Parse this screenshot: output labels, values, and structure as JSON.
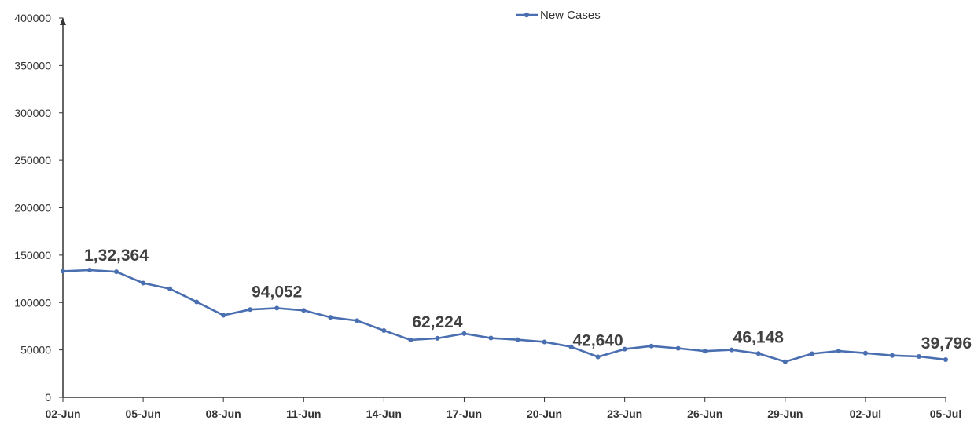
{
  "colors": {
    "series": "#4a6fb0",
    "axis": "#333333",
    "label": "#404040"
  },
  "chart_data": {
    "type": "line",
    "title": "",
    "xlabel": "",
    "ylabel": "",
    "ylim": [
      0,
      400000
    ],
    "y_ticks": [
      "0",
      "50000",
      "100000",
      "150000",
      "200000",
      "250000",
      "300000",
      "350000",
      "400000"
    ],
    "x_tick_labels": [
      "02-Jun",
      "05-Jun",
      "08-Jun",
      "11-Jun",
      "14-Jun",
      "17-Jun",
      "20-Jun",
      "23-Jun",
      "26-Jun",
      "29-Jun",
      "02-Jul",
      "05-Jul"
    ],
    "grid": false,
    "legend_position": "top-center",
    "x": [
      "02-Jun",
      "03-Jun",
      "04-Jun",
      "05-Jun",
      "06-Jun",
      "07-Jun",
      "08-Jun",
      "09-Jun",
      "10-Jun",
      "11-Jun",
      "12-Jun",
      "13-Jun",
      "14-Jun",
      "15-Jun",
      "16-Jun",
      "17-Jun",
      "18-Jun",
      "19-Jun",
      "20-Jun",
      "21-Jun",
      "22-Jun",
      "23-Jun",
      "24-Jun",
      "25-Jun",
      "26-Jun",
      "27-Jun",
      "28-Jun",
      "29-Jun",
      "30-Jun",
      "01-Jul",
      "02-Jul",
      "03-Jul",
      "04-Jul",
      "05-Jul"
    ],
    "series": [
      {
        "name": "New Cases",
        "values": [
          133000,
          134154,
          132364,
          120529,
          114460,
          100636,
          86498,
          92596,
          94052,
          91702,
          84332,
          80834,
          70421,
          60471,
          62224,
          67208,
          62480,
          60753,
          58419,
          53256,
          42640,
          50848,
          54069,
          51667,
          48698,
          50040,
          46148,
          37566,
          45951,
          48786,
          46617,
          44111,
          43071,
          39796
        ]
      }
    ],
    "data_labels": [
      {
        "index": 2,
        "text": "1,32,364"
      },
      {
        "index": 8,
        "text": "94,052"
      },
      {
        "index": 14,
        "text": "62,224"
      },
      {
        "index": 20,
        "text": "42,640"
      },
      {
        "index": 26,
        "text": "46,148"
      },
      {
        "index": 33,
        "text": "39,796"
      }
    ]
  }
}
